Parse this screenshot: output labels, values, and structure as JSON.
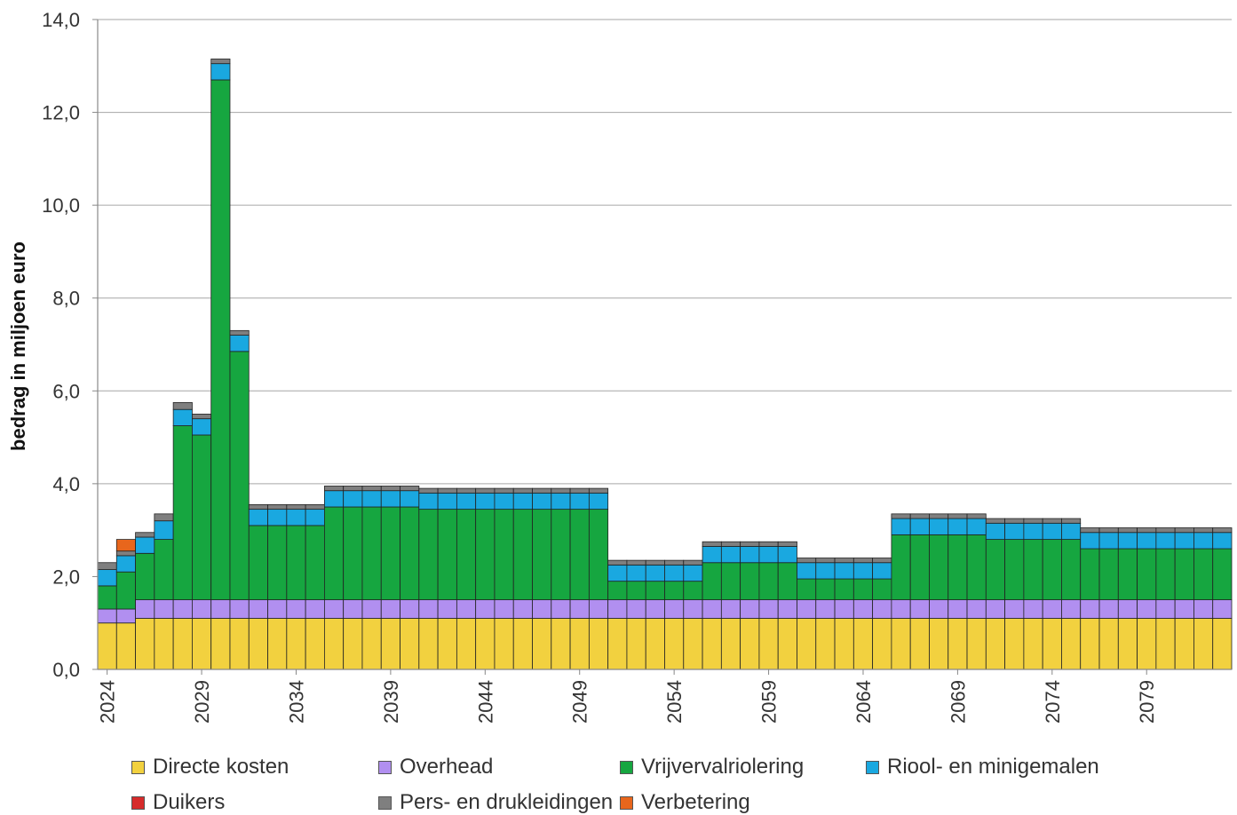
{
  "chart_data": {
    "type": "bar",
    "stacked": true,
    "title": "",
    "xlabel": "",
    "ylabel": "bedrag in miljoen euro",
    "ylim": [
      0,
      14
    ],
    "yticks": [
      "0,0",
      "2,0",
      "4,0",
      "6,0",
      "8,0",
      "10,0",
      "12,0",
      "14,0"
    ],
    "grid": true,
    "legend_position": "bottom",
    "categories": [
      2024,
      2025,
      2026,
      2027,
      2028,
      2029,
      2030,
      2031,
      2032,
      2033,
      2034,
      2035,
      2036,
      2037,
      2038,
      2039,
      2040,
      2041,
      2042,
      2043,
      2044,
      2045,
      2046,
      2047,
      2048,
      2049,
      2050,
      2051,
      2052,
      2053,
      2054,
      2055,
      2056,
      2057,
      2058,
      2059,
      2060,
      2061,
      2062,
      2063,
      2064,
      2065,
      2066,
      2067,
      2068,
      2069,
      2070,
      2071,
      2072,
      2073,
      2074,
      2075,
      2076,
      2077,
      2078,
      2079,
      2080,
      2081,
      2082,
      2083
    ],
    "xtick_labels": [
      "2024",
      "2029",
      "2034",
      "2039",
      "2044",
      "2049",
      "2054",
      "2059",
      "2064",
      "2069",
      "2074",
      "2079"
    ],
    "series": [
      {
        "name": "Directe kosten",
        "color": "#f2d13f",
        "values": [
          1.0,
          1.0,
          1.1,
          1.1,
          1.1,
          1.1,
          1.1,
          1.1,
          1.1,
          1.1,
          1.1,
          1.1,
          1.1,
          1.1,
          1.1,
          1.1,
          1.1,
          1.1,
          1.1,
          1.1,
          1.1,
          1.1,
          1.1,
          1.1,
          1.1,
          1.1,
          1.1,
          1.1,
          1.1,
          1.1,
          1.1,
          1.1,
          1.1,
          1.1,
          1.1,
          1.1,
          1.1,
          1.1,
          1.1,
          1.1,
          1.1,
          1.1,
          1.1,
          1.1,
          1.1,
          1.1,
          1.1,
          1.1,
          1.1,
          1.1,
          1.1,
          1.1,
          1.1,
          1.1,
          1.1,
          1.1,
          1.1,
          1.1,
          1.1,
          1.1
        ]
      },
      {
        "name": "Overhead",
        "color": "#b18ff0",
        "values": [
          0.3,
          0.3,
          0.4,
          0.4,
          0.4,
          0.4,
          0.4,
          0.4,
          0.4,
          0.4,
          0.4,
          0.4,
          0.4,
          0.4,
          0.4,
          0.4,
          0.4,
          0.4,
          0.4,
          0.4,
          0.4,
          0.4,
          0.4,
          0.4,
          0.4,
          0.4,
          0.4,
          0.4,
          0.4,
          0.4,
          0.4,
          0.4,
          0.4,
          0.4,
          0.4,
          0.4,
          0.4,
          0.4,
          0.4,
          0.4,
          0.4,
          0.4,
          0.4,
          0.4,
          0.4,
          0.4,
          0.4,
          0.4,
          0.4,
          0.4,
          0.4,
          0.4,
          0.4,
          0.4,
          0.4,
          0.4,
          0.4,
          0.4,
          0.4,
          0.4
        ]
      },
      {
        "name": "Vrijvervalriolering",
        "color": "#16a640",
        "values": [
          0.5,
          0.8,
          1.0,
          1.3,
          3.75,
          3.55,
          11.2,
          5.35,
          1.6,
          1.6,
          1.6,
          1.6,
          2.0,
          2.0,
          2.0,
          2.0,
          2.0,
          1.95,
          1.95,
          1.95,
          1.95,
          1.95,
          1.95,
          1.95,
          1.95,
          1.95,
          1.95,
          0.4,
          0.4,
          0.4,
          0.4,
          0.4,
          0.8,
          0.8,
          0.8,
          0.8,
          0.8,
          0.45,
          0.45,
          0.45,
          0.45,
          0.45,
          1.4,
          1.4,
          1.4,
          1.4,
          1.4,
          1.3,
          1.3,
          1.3,
          1.3,
          1.3,
          1.1,
          1.1,
          1.1,
          1.1,
          1.1,
          1.1,
          1.1,
          1.1
        ]
      },
      {
        "name": "Riool- en minigemalen",
        "color": "#1aa8e0",
        "values": [
          0.35,
          0.35,
          0.35,
          0.4,
          0.35,
          0.35,
          0.35,
          0.35,
          0.35,
          0.35,
          0.35,
          0.35,
          0.35,
          0.35,
          0.35,
          0.35,
          0.35,
          0.35,
          0.35,
          0.35,
          0.35,
          0.35,
          0.35,
          0.35,
          0.35,
          0.35,
          0.35,
          0.35,
          0.35,
          0.35,
          0.35,
          0.35,
          0.35,
          0.35,
          0.35,
          0.35,
          0.35,
          0.35,
          0.35,
          0.35,
          0.35,
          0.35,
          0.35,
          0.35,
          0.35,
          0.35,
          0.35,
          0.35,
          0.35,
          0.35,
          0.35,
          0.35,
          0.35,
          0.35,
          0.35,
          0.35,
          0.35,
          0.35,
          0.35,
          0.35
        ]
      },
      {
        "name": "Duikers",
        "color": "#d62b2b",
        "values": [
          0,
          0,
          0,
          0,
          0,
          0,
          0,
          0,
          0,
          0,
          0,
          0,
          0,
          0,
          0,
          0,
          0,
          0,
          0,
          0,
          0,
          0,
          0,
          0,
          0,
          0,
          0,
          0,
          0,
          0,
          0,
          0,
          0,
          0,
          0,
          0,
          0,
          0,
          0,
          0,
          0,
          0,
          0,
          0,
          0,
          0,
          0,
          0,
          0,
          0,
          0,
          0,
          0,
          0,
          0,
          0,
          0,
          0,
          0,
          0
        ]
      },
      {
        "name": "Pers- en drukleidingen",
        "color": "#7f7f7f",
        "values": [
          0.15,
          0.1,
          0.1,
          0.15,
          0.15,
          0.1,
          0.1,
          0.1,
          0.1,
          0.1,
          0.1,
          0.1,
          0.1,
          0.1,
          0.1,
          0.1,
          0.1,
          0.1,
          0.1,
          0.1,
          0.1,
          0.1,
          0.1,
          0.1,
          0.1,
          0.1,
          0.1,
          0.1,
          0.1,
          0.1,
          0.1,
          0.1,
          0.1,
          0.1,
          0.1,
          0.1,
          0.1,
          0.1,
          0.1,
          0.1,
          0.1,
          0.1,
          0.1,
          0.1,
          0.1,
          0.1,
          0.1,
          0.1,
          0.1,
          0.1,
          0.1,
          0.1,
          0.1,
          0.1,
          0.1,
          0.1,
          0.1,
          0.1,
          0.1,
          0.1
        ]
      },
      {
        "name": "Verbetering",
        "color": "#e8661c",
        "values": [
          0,
          0.25,
          0,
          0,
          0,
          0,
          0,
          0,
          0,
          0,
          0,
          0,
          0,
          0,
          0,
          0,
          0,
          0,
          0,
          0,
          0,
          0,
          0,
          0,
          0,
          0,
          0,
          0,
          0,
          0,
          0,
          0,
          0,
          0,
          0,
          0,
          0,
          0,
          0,
          0,
          0,
          0,
          0,
          0,
          0,
          0,
          0,
          0,
          0,
          0,
          0,
          0,
          0,
          0,
          0,
          0,
          0,
          0,
          0,
          0
        ]
      }
    ]
  }
}
